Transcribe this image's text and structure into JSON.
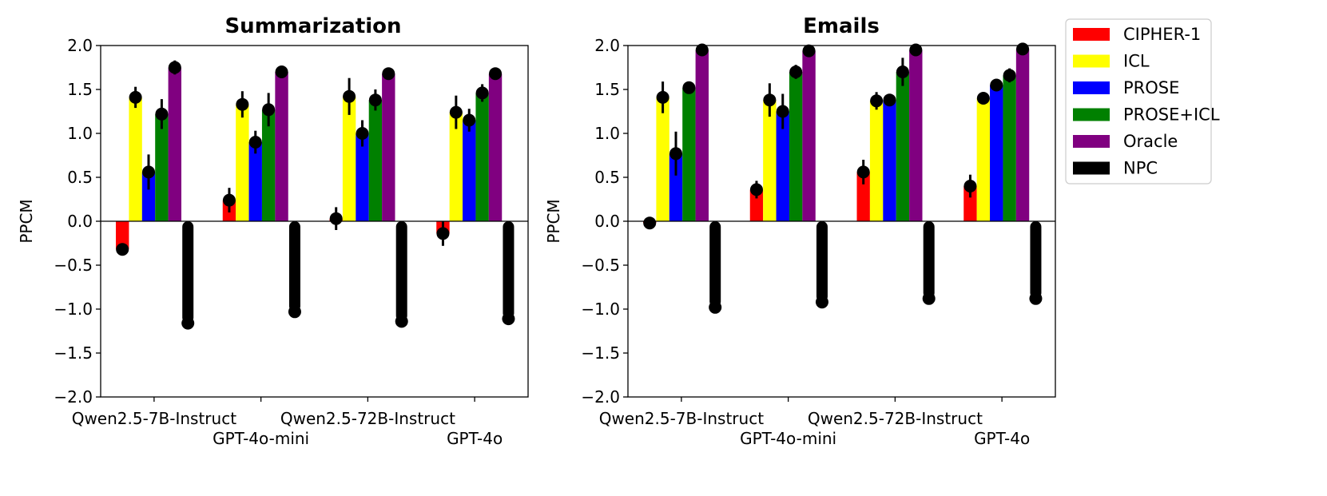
{
  "chart_data": [
    {
      "type": "bar",
      "title": "Summarization",
      "ylabel": "PPCM",
      "xlabel": "",
      "ylim": [
        -2.0,
        2.0
      ],
      "yticks": [
        "2.0",
        "1.5",
        "1.0",
        "0.5",
        "0.0",
        "−0.5",
        "−1.0",
        "−1.5",
        "−2.0"
      ],
      "categories": [
        "Qwen2.5-7B-Instruct",
        "GPT-4o-mini",
        "Qwen2.5-72B-Instruct",
        "GPT-4o"
      ],
      "series": [
        {
          "name": "CIPHER-1",
          "values": [
            -0.32,
            0.24,
            0.03,
            -0.14
          ],
          "err": [
            0.05,
            0.14,
            0.13,
            0.14
          ]
        },
        {
          "name": "ICL",
          "values": [
            1.41,
            1.33,
            1.42,
            1.24
          ],
          "err": [
            0.12,
            0.15,
            0.21,
            0.19
          ]
        },
        {
          "name": "PROSE",
          "values": [
            0.56,
            0.9,
            1.0,
            1.15
          ],
          "err": [
            0.2,
            0.13,
            0.15,
            0.13
          ]
        },
        {
          "name": "PROSE+ICL",
          "values": [
            1.22,
            1.27,
            1.38,
            1.46
          ],
          "err": [
            0.17,
            0.19,
            0.12,
            0.1
          ]
        },
        {
          "name": "Oracle",
          "values": [
            1.75,
            1.7,
            1.68,
            1.68
          ],
          "err": [
            0.08,
            0.07,
            0.04,
            0.06
          ]
        },
        {
          "name": "NPC",
          "values": [
            -1.16,
            -1.03,
            -1.14,
            -1.11
          ],
          "err": [
            0.05,
            0.03,
            0.02,
            0.04
          ]
        }
      ]
    },
    {
      "type": "bar",
      "title": "Emails",
      "ylabel": "PPCM",
      "xlabel": "",
      "ylim": [
        -2.0,
        2.0
      ],
      "yticks": [
        "2.0",
        "1.5",
        "1.0",
        "0.5",
        "0.0",
        "−0.5",
        "−1.0",
        "−1.5",
        "−2.0"
      ],
      "categories": [
        "Qwen2.5-7B-Instruct",
        "GPT-4o-mini",
        "Qwen2.5-72B-Instruct",
        "GPT-4o"
      ],
      "series": [
        {
          "name": "CIPHER-1",
          "values": [
            -0.02,
            0.36,
            0.56,
            0.4
          ],
          "err": [
            0.05,
            0.1,
            0.14,
            0.13
          ]
        },
        {
          "name": "ICL",
          "values": [
            1.41,
            1.38,
            1.37,
            1.4
          ],
          "err": [
            0.18,
            0.19,
            0.1,
            0.05
          ]
        },
        {
          "name": "PROSE",
          "values": [
            0.77,
            1.25,
            1.38,
            1.55
          ],
          "err": [
            0.25,
            0.2,
            0.04,
            0.04
          ]
        },
        {
          "name": "PROSE+ICL",
          "values": [
            1.52,
            1.7,
            1.7,
            1.66
          ],
          "err": [
            0.05,
            0.08,
            0.16,
            0.08
          ]
        },
        {
          "name": "Oracle",
          "values": [
            1.95,
            1.94,
            1.95,
            1.96
          ],
          "err": [
            0.02,
            0.02,
            0.02,
            0.02
          ]
        },
        {
          "name": "NPC",
          "values": [
            -0.98,
            -0.92,
            -0.88,
            -0.88
          ],
          "err": [
            0.03,
            0.03,
            0.07,
            0.03
          ]
        }
      ]
    }
  ],
  "legend": {
    "position": "top-right",
    "items": [
      {
        "label": "CIPHER-1",
        "color": "#ff0000"
      },
      {
        "label": "ICL",
        "color": "#ffff00"
      },
      {
        "label": "PROSE",
        "color": "#0000ff"
      },
      {
        "label": "PROSE+ICL",
        "color": "#008000"
      },
      {
        "label": "Oracle",
        "color": "#800080"
      },
      {
        "label": "NPC",
        "color": "#000000"
      }
    ]
  }
}
